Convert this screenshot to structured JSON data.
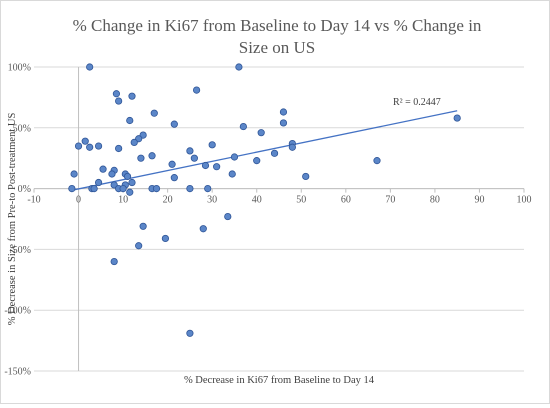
{
  "chart_data": {
    "type": "scatter",
    "title_line1": "% Change  in Ki67  from  Baseline to Day  14 vs % Change  in",
    "title_line2": "Size on US",
    "xlabel": "% Decrease in Ki67 from Baseline to Day 14",
    "ylabel": "% Decrease in Size from Pre-to Post-treatment US",
    "xlim": [
      -10,
      100
    ],
    "ylim": [
      -150,
      100
    ],
    "x_ticks": [
      -10,
      0,
      10,
      20,
      30,
      40,
      50,
      60,
      70,
      80,
      90,
      100
    ],
    "x_tick_labels": [
      "-10",
      "0",
      "10",
      "20",
      "30",
      "40",
      "50",
      "60",
      "70",
      "80",
      "90",
      "100"
    ],
    "y_ticks": [
      100,
      50,
      0,
      -50,
      -100,
      -150
    ],
    "y_tick_labels": [
      "100%",
      "50%",
      "0%",
      "-50%",
      "-100%",
      "-150%"
    ],
    "grid": true,
    "marker_color": "#5b86c8",
    "marker_edge_color": "#2f5597",
    "trendline_color": "#4472c4",
    "trendline": {
      "x": [
        -1,
        85
      ],
      "y": [
        -1,
        64
      ]
    },
    "r_squared_label": "R² = 0.2447",
    "points": [
      {
        "x": 2.5,
        "y": 100
      },
      {
        "x": 36,
        "y": 100
      },
      {
        "x": 8.5,
        "y": 78
      },
      {
        "x": 12,
        "y": 76
      },
      {
        "x": 9,
        "y": 72
      },
      {
        "x": 26.5,
        "y": 81
      },
      {
        "x": 17,
        "y": 62
      },
      {
        "x": 46,
        "y": 63
      },
      {
        "x": 11.5,
        "y": 56
      },
      {
        "x": 21.5,
        "y": 53
      },
      {
        "x": 37,
        "y": 51
      },
      {
        "x": 46,
        "y": 54
      },
      {
        "x": 85,
        "y": 58
      },
      {
        "x": 14.5,
        "y": 44
      },
      {
        "x": 41,
        "y": 46
      },
      {
        "x": 13.5,
        "y": 41
      },
      {
        "x": 12.5,
        "y": 38
      },
      {
        "x": 1.5,
        "y": 39
      },
      {
        "x": 0,
        "y": 35
      },
      {
        "x": 4.5,
        "y": 35
      },
      {
        "x": 2.5,
        "y": 34
      },
      {
        "x": 9,
        "y": 33
      },
      {
        "x": 30,
        "y": 36
      },
      {
        "x": 48,
        "y": 37
      },
      {
        "x": 48,
        "y": 34
      },
      {
        "x": 44,
        "y": 29
      },
      {
        "x": 25,
        "y": 31
      },
      {
        "x": 16.5,
        "y": 27
      },
      {
        "x": 35,
        "y": 26
      },
      {
        "x": 14,
        "y": 25
      },
      {
        "x": 40,
        "y": 23
      },
      {
        "x": 26,
        "y": 25
      },
      {
        "x": 67,
        "y": 23
      },
      {
        "x": 21,
        "y": 20
      },
      {
        "x": 31,
        "y": 18
      },
      {
        "x": 28.5,
        "y": 19
      },
      {
        "x": 5.5,
        "y": 16
      },
      {
        "x": 8,
        "y": 15
      },
      {
        "x": 10.5,
        "y": 12
      },
      {
        "x": 7.5,
        "y": 12
      },
      {
        "x": 11,
        "y": 10
      },
      {
        "x": 21.5,
        "y": 9
      },
      {
        "x": 51,
        "y": 10
      },
      {
        "x": 34.5,
        "y": 12
      },
      {
        "x": -1,
        "y": 12
      },
      {
        "x": 4.5,
        "y": 5
      },
      {
        "x": 12,
        "y": 5
      },
      {
        "x": 8,
        "y": 3
      },
      {
        "x": 10.5,
        "y": 3
      },
      {
        "x": -1.5,
        "y": 0
      },
      {
        "x": 3,
        "y": 0
      },
      {
        "x": 3.5,
        "y": 0
      },
      {
        "x": 9,
        "y": 0
      },
      {
        "x": 10,
        "y": 0
      },
      {
        "x": 16.5,
        "y": 0
      },
      {
        "x": 17.5,
        "y": 0
      },
      {
        "x": 25,
        "y": 0
      },
      {
        "x": 29,
        "y": 0
      },
      {
        "x": 11.5,
        "y": -3
      },
      {
        "x": 33.5,
        "y": -23
      },
      {
        "x": 28,
        "y": -33
      },
      {
        "x": 14.5,
        "y": -31
      },
      {
        "x": 19.5,
        "y": -41
      },
      {
        "x": 13.5,
        "y": -47
      },
      {
        "x": 8,
        "y": -60
      },
      {
        "x": 25,
        "y": -119
      }
    ]
  }
}
